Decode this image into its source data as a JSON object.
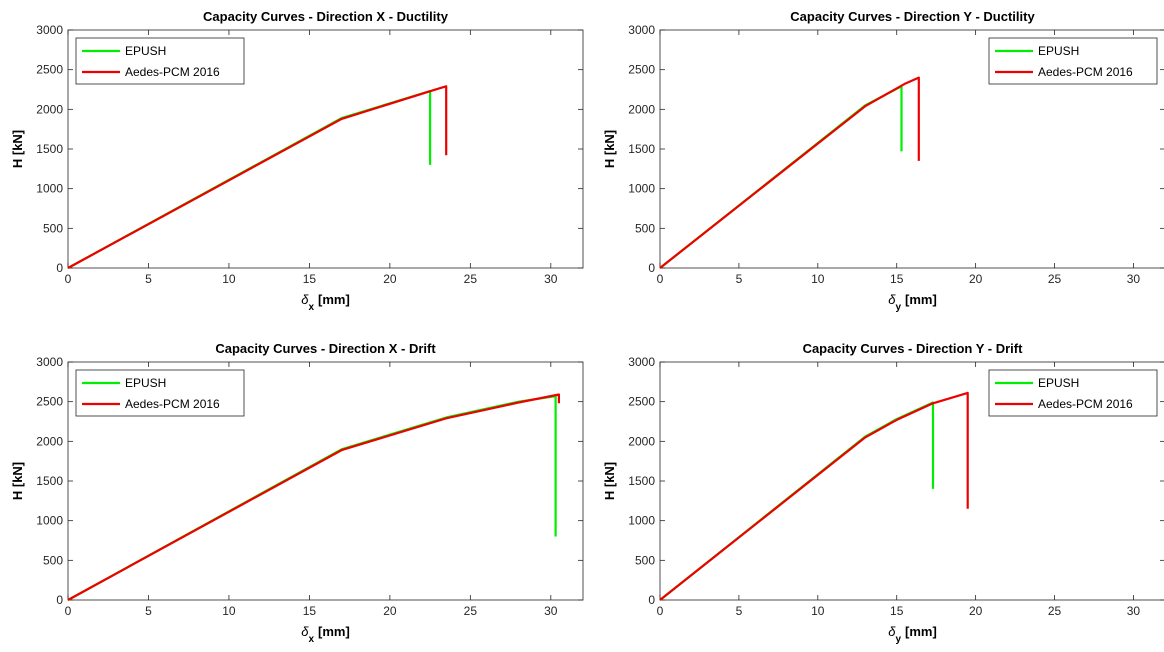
{
  "chart_data": [
    {
      "type": "line",
      "title": "Capacity Curves - Direction X - Ductility",
      "xlabel_symbol": "δ",
      "xlabel_sub": "x",
      "xlabel_unit": "[mm]",
      "ylabel": "H [kN]",
      "xlim": [
        0,
        32
      ],
      "ylim": [
        0,
        3000
      ],
      "xticks": [
        0,
        5,
        10,
        15,
        20,
        25,
        30
      ],
      "yticks": [
        0,
        500,
        1000,
        1500,
        2000,
        2500,
        3000
      ],
      "legend_position": "top-left",
      "series": [
        {
          "name": "EPUSH",
          "color": "#00ee00",
          "points": [
            [
              0,
              0
            ],
            [
              17,
              1890
            ],
            [
              22.5,
              2230
            ],
            [
              22.5,
              1300
            ]
          ]
        },
        {
          "name": "Aedes-PCM 2016",
          "color": "#ee0000",
          "points": [
            [
              0,
              0
            ],
            [
              17,
              1880
            ],
            [
              23,
              2260
            ],
            [
              23.5,
              2290
            ],
            [
              23.5,
              1420
            ]
          ]
        }
      ]
    },
    {
      "type": "line",
      "title": "Capacity Curves - Direction Y - Ductility",
      "xlabel_symbol": "δ",
      "xlabel_sub": "y",
      "xlabel_unit": "[mm]",
      "ylabel": "H [kN]",
      "xlim": [
        0,
        32
      ],
      "ylim": [
        0,
        3000
      ],
      "xticks": [
        0,
        5,
        10,
        15,
        20,
        25,
        30
      ],
      "yticks": [
        0,
        500,
        1000,
        1500,
        2000,
        2500,
        3000
      ],
      "legend_position": "top-right",
      "series": [
        {
          "name": "EPUSH",
          "color": "#00ee00",
          "points": [
            [
              0,
              0
            ],
            [
              13,
              2050
            ],
            [
              15.3,
              2290
            ],
            [
              15.3,
              1470
            ]
          ]
        },
        {
          "name": "Aedes-PCM 2016",
          "color": "#ee0000",
          "points": [
            [
              0,
              0
            ],
            [
              13,
              2040
            ],
            [
              15.5,
              2320
            ],
            [
              16.4,
              2400
            ],
            [
              16.4,
              1350
            ]
          ]
        }
      ]
    },
    {
      "type": "line",
      "title": "Capacity Curves - Direction X - Drift",
      "xlabel_symbol": "δ",
      "xlabel_sub": "x",
      "xlabel_unit": "[mm]",
      "ylabel": "H [kN]",
      "xlim": [
        0,
        32
      ],
      "ylim": [
        0,
        3000
      ],
      "xticks": [
        0,
        5,
        10,
        15,
        20,
        25,
        30
      ],
      "yticks": [
        0,
        500,
        1000,
        1500,
        2000,
        2500,
        3000
      ],
      "legend_position": "top-left",
      "series": [
        {
          "name": "EPUSH",
          "color": "#00ee00",
          "points": [
            [
              0,
              0
            ],
            [
              17,
              1900
            ],
            [
              23.5,
              2300
            ],
            [
              28,
              2500
            ],
            [
              30.3,
              2570
            ],
            [
              30.3,
              800
            ]
          ]
        },
        {
          "name": "Aedes-PCM 2016",
          "color": "#ee0000",
          "points": [
            [
              0,
              0
            ],
            [
              17,
              1890
            ],
            [
              23.5,
              2290
            ],
            [
              28,
              2490
            ],
            [
              30.5,
              2590
            ],
            [
              30.5,
              2480
            ]
          ]
        }
      ]
    },
    {
      "type": "line",
      "title": "Capacity Curves - Direction Y - Drift",
      "xlabel_symbol": "δ",
      "xlabel_sub": "y",
      "xlabel_unit": "[mm]",
      "ylabel": "H [kN]",
      "xlim": [
        0,
        32
      ],
      "ylim": [
        0,
        3000
      ],
      "xticks": [
        0,
        5,
        10,
        15,
        20,
        25,
        30
      ],
      "yticks": [
        0,
        500,
        1000,
        1500,
        2000,
        2500,
        3000
      ],
      "legend_position": "top-right",
      "series": [
        {
          "name": "EPUSH",
          "color": "#00ee00",
          "points": [
            [
              0,
              0
            ],
            [
              13,
              2060
            ],
            [
              15,
              2280
            ],
            [
              17.3,
              2490
            ],
            [
              17.3,
              1400
            ]
          ]
        },
        {
          "name": "Aedes-PCM 2016",
          "color": "#ee0000",
          "points": [
            [
              0,
              0
            ],
            [
              13,
              2050
            ],
            [
              15,
              2270
            ],
            [
              17.3,
              2480
            ],
            [
              19.5,
              2610
            ],
            [
              19.5,
              1150
            ]
          ]
        }
      ]
    }
  ]
}
